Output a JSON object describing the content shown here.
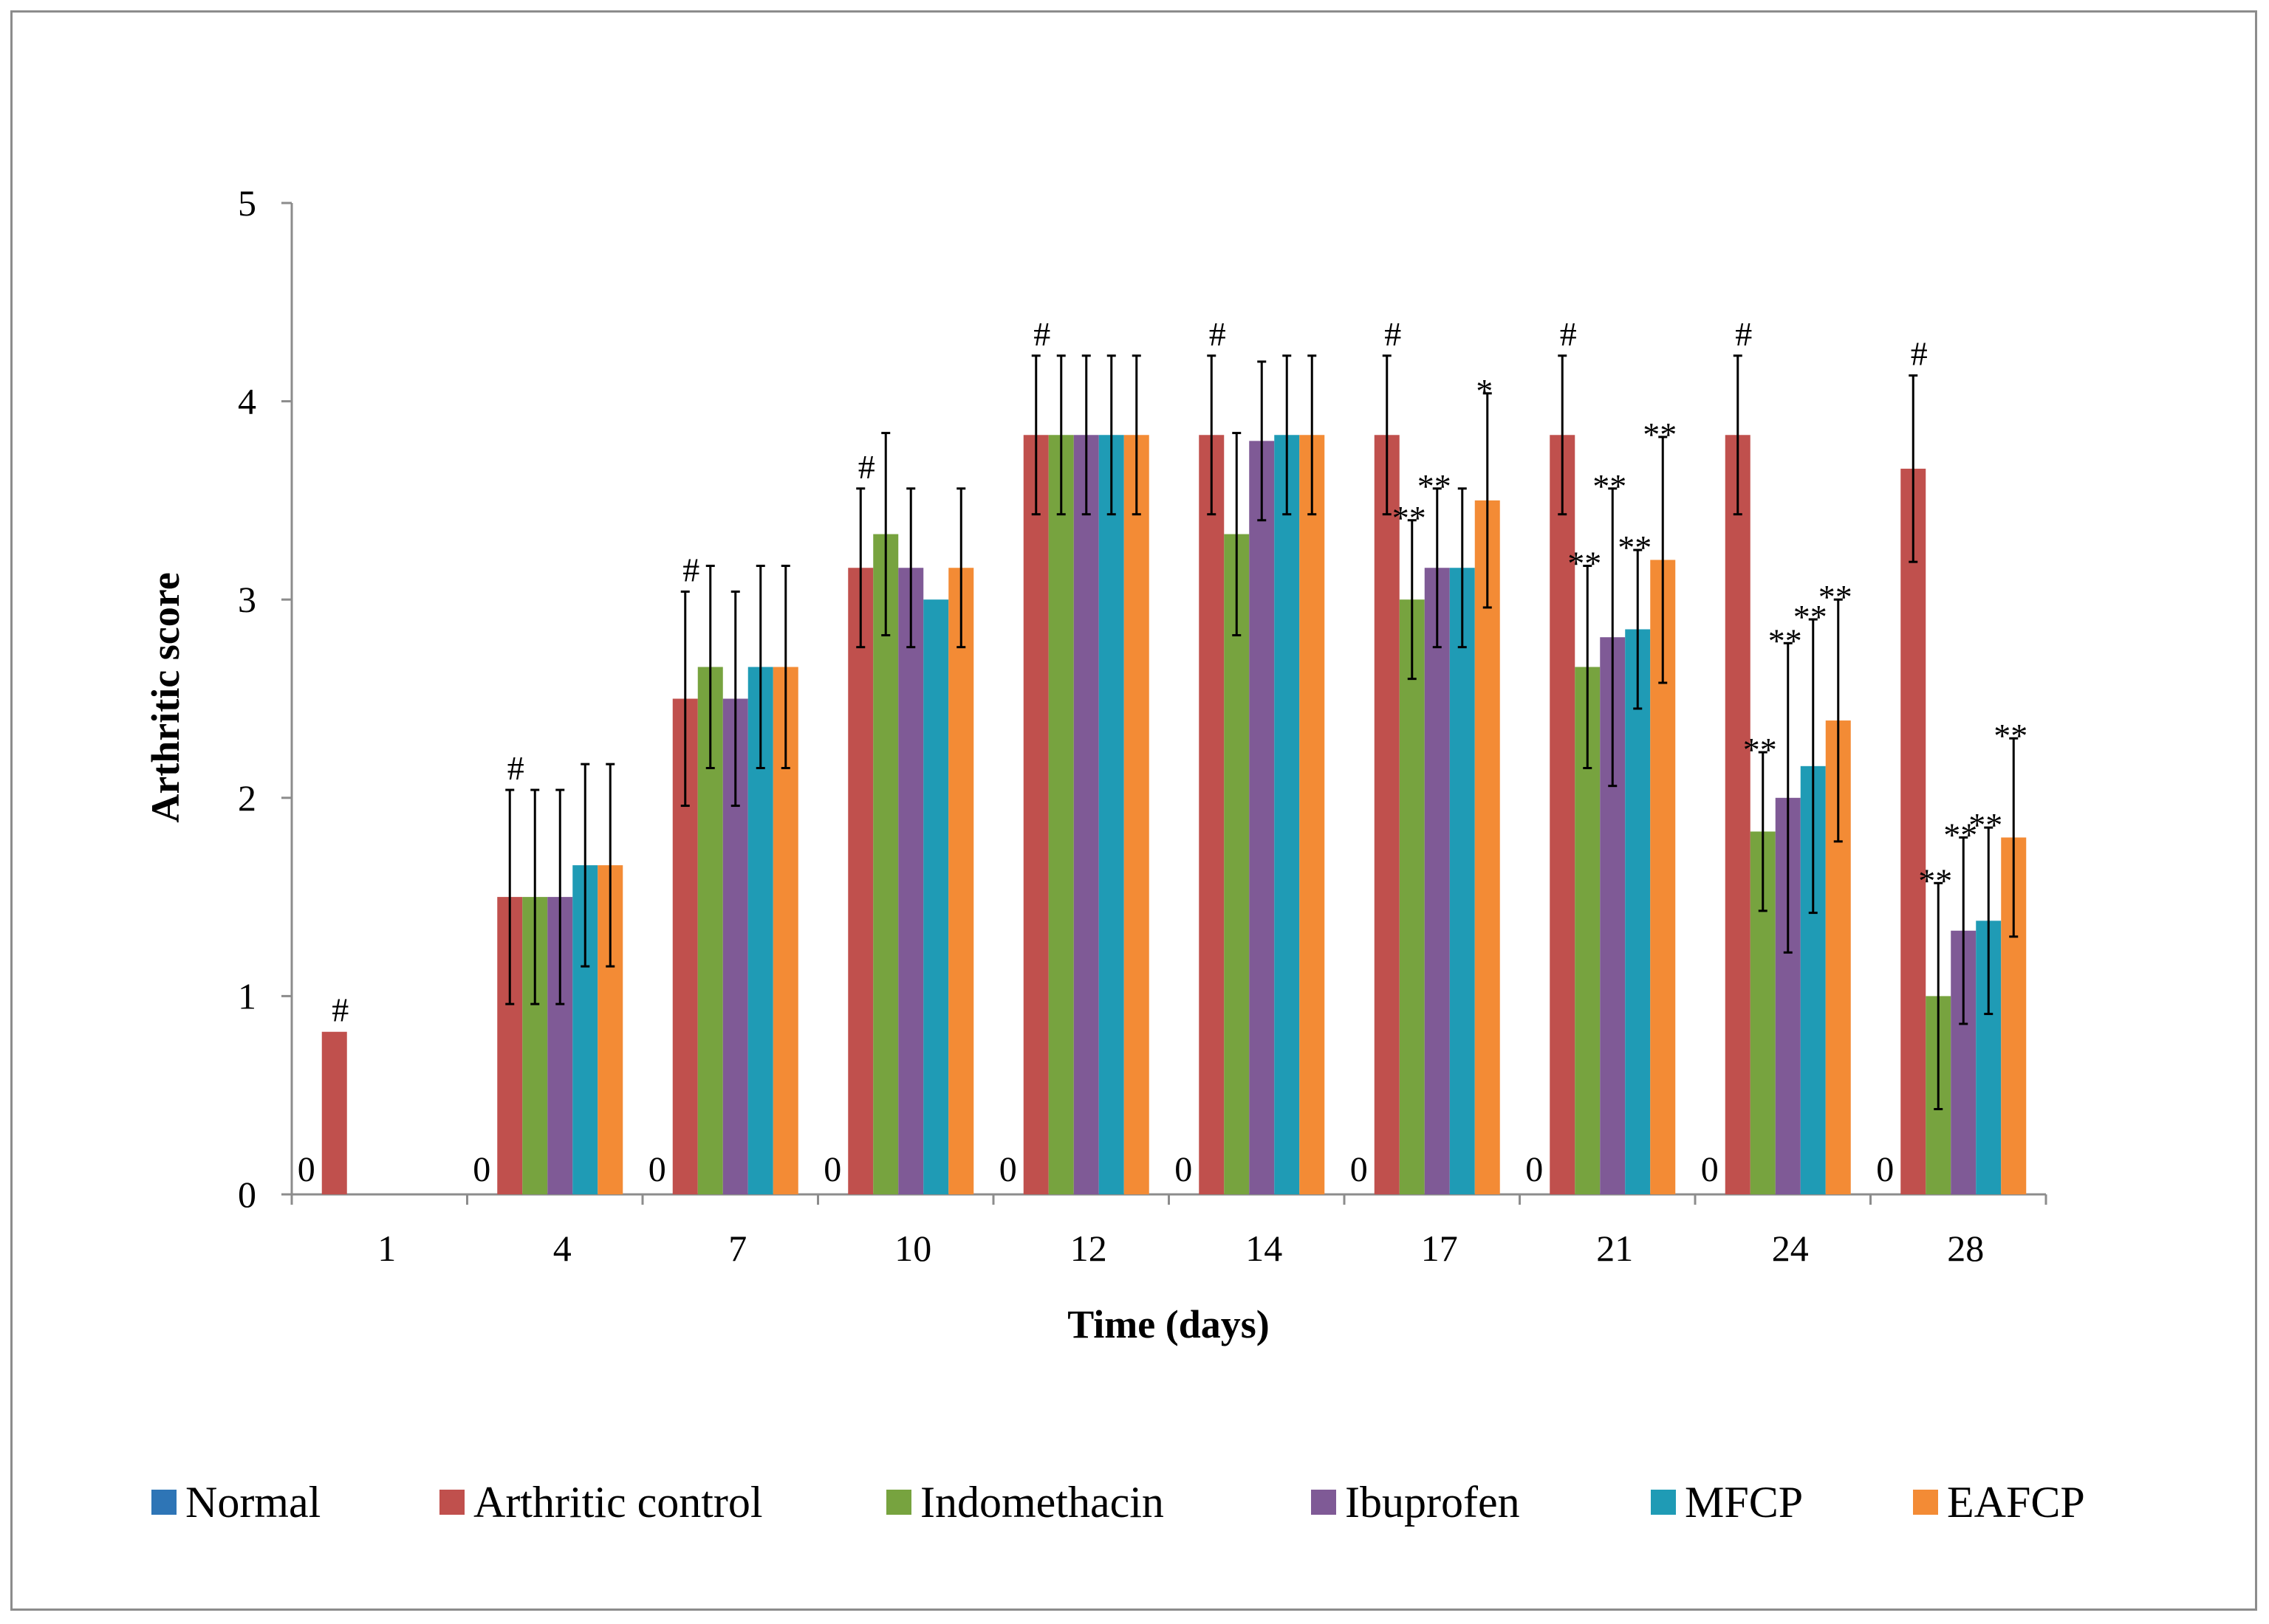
{
  "chart_data": {
    "type": "bar",
    "title": "",
    "xlabel": "Time (days)",
    "ylabel": "Arthritic score",
    "ylim": [
      0,
      5
    ],
    "yticks": [
      0,
      1,
      2,
      3,
      4,
      5
    ],
    "grid": false,
    "legend_position": "bottom",
    "categories": [
      "1",
      "4",
      "7",
      "10",
      "12",
      "14",
      "17",
      "21",
      "24",
      "28"
    ],
    "zero_label": "0",
    "control_marker": "#",
    "series": [
      {
        "name": "Normal",
        "color": "#2e75b6",
        "values": [
          0,
          0,
          0,
          0,
          0,
          0,
          0,
          0,
          0,
          0
        ],
        "errors": [
          0,
          0,
          0,
          0,
          0,
          0,
          0,
          0,
          0,
          0
        ],
        "annotations": [
          "",
          "",
          "",
          "",
          "",
          "",
          "",
          "",
          "",
          ""
        ]
      },
      {
        "name": "Arthritic control",
        "color": "#c0504d",
        "values": [
          0.82,
          1.5,
          2.5,
          3.16,
          3.83,
          3.83,
          3.83,
          3.83,
          3.83,
          3.66
        ],
        "errors": [
          0,
          0.54,
          0.54,
          0.4,
          0.4,
          0.4,
          0.4,
          0.4,
          0.4,
          0.47
        ],
        "annotations": [
          "",
          "",
          "",
          "",
          "",
          "",
          "",
          "",
          "",
          ""
        ]
      },
      {
        "name": "Indomethacin",
        "color": "#77a33f",
        "values": [
          0,
          1.5,
          2.66,
          3.33,
          3.83,
          3.33,
          3.0,
          2.66,
          1.83,
          1.0
        ],
        "errors": [
          0,
          0.54,
          0.51,
          0.51,
          0.4,
          0.51,
          0.4,
          0.51,
          0.4,
          0.57
        ],
        "annotations": [
          "",
          "",
          "",
          "",
          "",
          "",
          "**",
          "**",
          "**",
          "**"
        ]
      },
      {
        "name": "Ibuprofen",
        "color": "#7f5a96",
        "values": [
          0,
          1.5,
          2.5,
          3.16,
          3.83,
          3.8,
          3.16,
          2.81,
          2.0,
          1.33
        ],
        "errors": [
          0,
          0.54,
          0.54,
          0.4,
          0.4,
          0.4,
          0.4,
          0.75,
          0.78,
          0.47
        ],
        "annotations": [
          "",
          "",
          "",
          "",
          "",
          "",
          "**",
          "**",
          "**",
          "**"
        ]
      },
      {
        "name": "MFCP",
        "color": "#1f9bb5",
        "values": [
          0,
          1.66,
          2.66,
          3.0,
          3.83,
          3.83,
          3.16,
          2.85,
          2.16,
          1.38
        ],
        "errors": [
          0,
          0.51,
          0.51,
          0,
          0.4,
          0.4,
          0.4,
          0.4,
          0.74,
          0.47
        ],
        "annotations": [
          "",
          "",
          "",
          "",
          "",
          "",
          "",
          "**",
          "**",
          "**"
        ]
      },
      {
        "name": "EAFCP",
        "color": "#f38b35",
        "values": [
          0,
          1.66,
          2.66,
          3.16,
          3.83,
          3.83,
          3.5,
          3.2,
          2.39,
          1.8
        ],
        "errors": [
          0,
          0.51,
          0.51,
          0.4,
          0.4,
          0.4,
          0.54,
          0.62,
          0.61,
          0.5
        ],
        "annotations": [
          "",
          "",
          "",
          "",
          "",
          "",
          "*",
          "**",
          "**",
          "**"
        ]
      }
    ]
  }
}
